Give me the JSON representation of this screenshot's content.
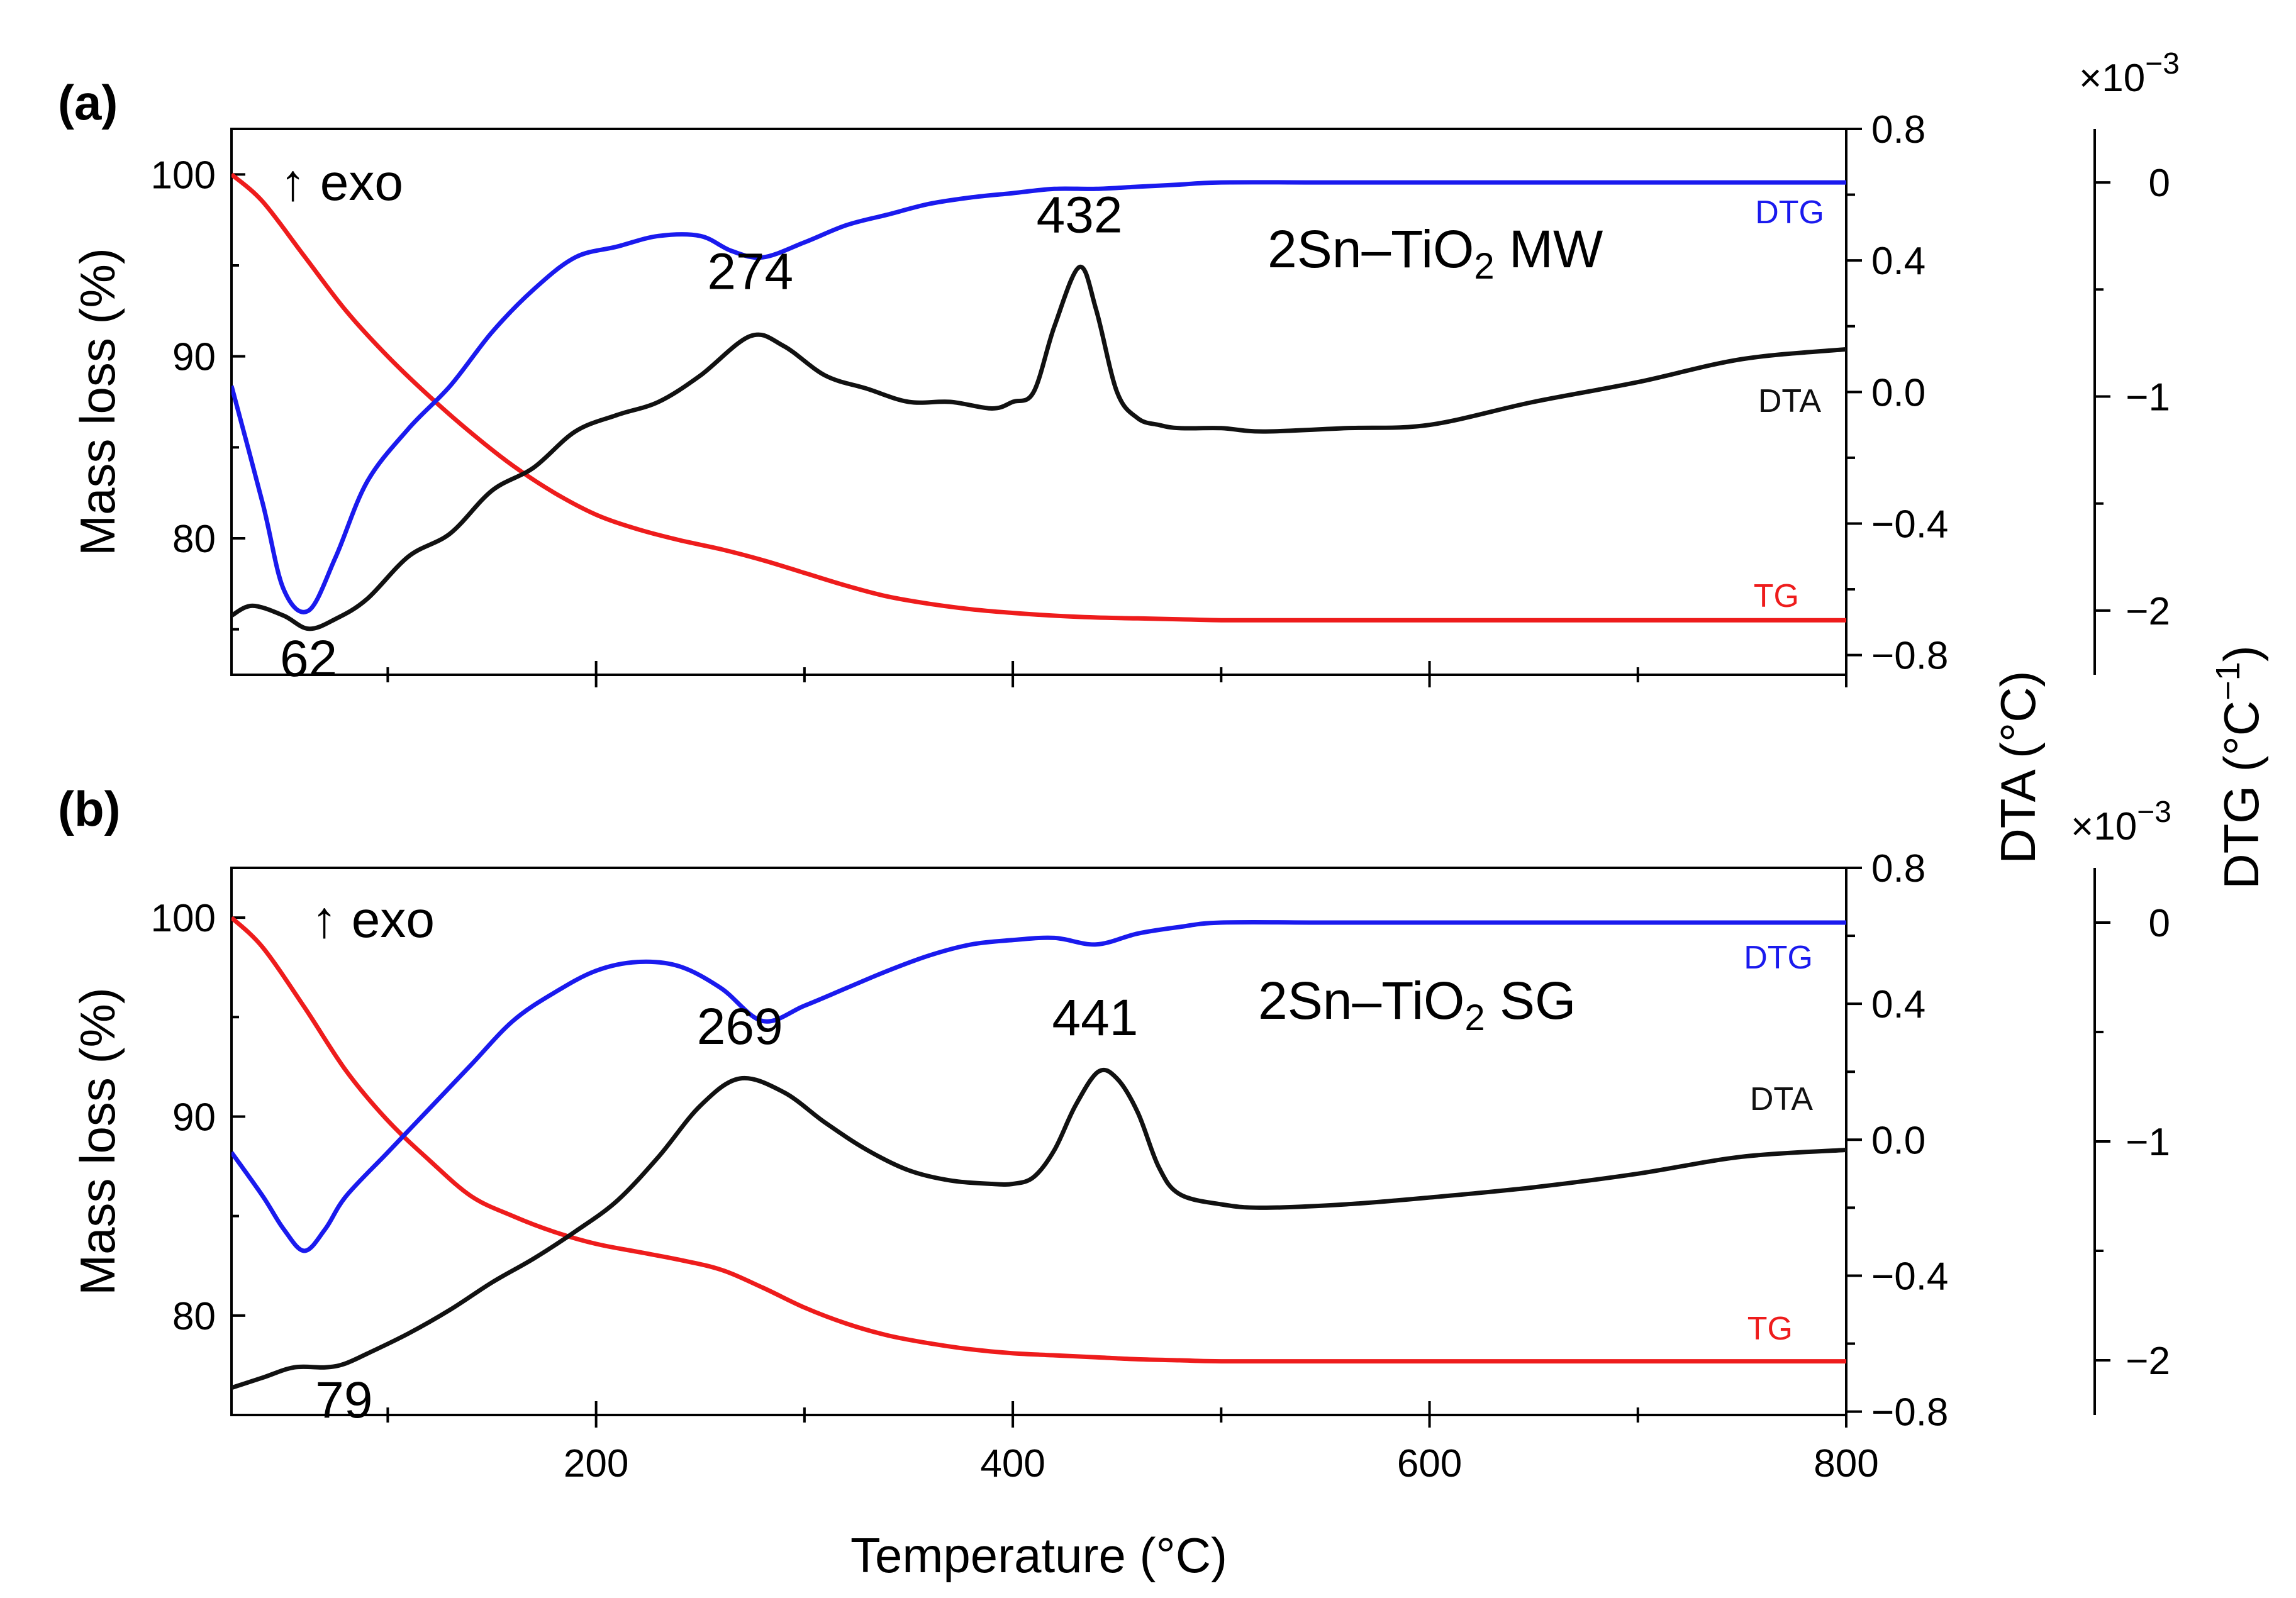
{
  "chart_data": [
    {
      "panel": "(a)",
      "type": "line",
      "sample_label": {
        "prefix": "2Sn–TiO",
        "sub": "2",
        "suffix": " MW"
      },
      "exo_label": "↑ exo",
      "x": {
        "label": "Temperature (°C)",
        "range": [
          25,
          800
        ]
      },
      "y_left": {
        "label": "Mass loss (%)",
        "range": [
          72.5,
          102.5
        ],
        "ticks": [
          "80",
          "90",
          "100"
        ]
      },
      "y_right1": {
        "label": "DTA (°C)",
        "range": [
          -0.86,
          0.8
        ],
        "ticks": [
          "−0.8",
          "−0.4",
          "0.0",
          "0.4",
          "0.8"
        ]
      },
      "y_right2": {
        "label": "DTG (°C−1)",
        "multiplier": "×10−3",
        "range": [
          -2.3,
          0.25
        ],
        "ticks": [
          "−2",
          "−1",
          "0"
        ]
      },
      "series": [
        {
          "name": "TG",
          "color": "#ee1c1c",
          "axis": "left",
          "x": [
            25,
            40,
            60,
            80,
            100,
            120,
            140,
            160,
            180,
            200,
            220,
            240,
            260,
            280,
            300,
            320,
            340,
            360,
            380,
            400,
            420,
            440,
            460,
            480,
            500,
            520,
            560,
            600,
            700,
            800
          ],
          "y": [
            100,
            98.5,
            95.5,
            92.5,
            90.0,
            87.8,
            85.8,
            84.0,
            82.5,
            81.3,
            80.5,
            79.9,
            79.4,
            78.8,
            78.1,
            77.4,
            76.8,
            76.4,
            76.1,
            75.9,
            75.75,
            75.65,
            75.6,
            75.55,
            75.5,
            75.5,
            75.5,
            75.5,
            75.5,
            75.5
          ]
        },
        {
          "name": "DTA",
          "color": "#111111",
          "axis": "right1",
          "x": [
            25,
            35,
            50,
            62,
            75,
            90,
            110,
            130,
            150,
            170,
            190,
            210,
            230,
            250,
            274,
            290,
            310,
            330,
            350,
            370,
            390,
            400,
            410,
            420,
            432,
            440,
            450,
            460,
            470,
            480,
            500,
            520,
            560,
            600,
            650,
            700,
            750,
            800
          ],
          "y": [
            -0.68,
            -0.65,
            -0.68,
            -0.72,
            -0.69,
            -0.63,
            -0.5,
            -0.43,
            -0.3,
            -0.23,
            -0.12,
            -0.07,
            -0.03,
            0.05,
            0.17,
            0.14,
            0.05,
            0.01,
            -0.03,
            -0.03,
            -0.05,
            -0.03,
            0.0,
            0.2,
            0.38,
            0.25,
            0.0,
            -0.08,
            -0.1,
            -0.11,
            -0.11,
            -0.12,
            -0.11,
            -0.1,
            -0.03,
            0.03,
            0.1,
            0.13
          ]
        },
        {
          "name": "DTG",
          "color": "#1a1aee",
          "axis": "right2",
          "x": [
            25,
            40,
            50,
            62,
            75,
            90,
            110,
            130,
            150,
            170,
            190,
            210,
            230,
            250,
            265,
            280,
            300,
            320,
            340,
            360,
            380,
            400,
            420,
            440,
            460,
            480,
            500,
            550,
            600,
            700,
            800
          ],
          "y": [
            -0.95,
            -1.5,
            -1.9,
            -2.0,
            -1.75,
            -1.4,
            -1.15,
            -0.95,
            -0.7,
            -0.5,
            -0.35,
            -0.3,
            -0.25,
            -0.25,
            -0.32,
            -0.35,
            -0.28,
            -0.2,
            -0.15,
            -0.1,
            -0.07,
            -0.05,
            -0.03,
            -0.03,
            -0.02,
            -0.01,
            0.0,
            0.0,
            0.0,
            0.0,
            0.0
          ]
        }
      ],
      "peak_labels": [
        {
          "text": "62",
          "x": 62,
          "series": "DTA"
        },
        {
          "text": "274",
          "x": 274,
          "series": "DTA"
        },
        {
          "text": "432",
          "x": 432,
          "series": "DTA"
        }
      ],
      "x_tick_labels_shown": false
    },
    {
      "panel": "(b)",
      "type": "line",
      "sample_label": {
        "prefix": "2Sn–TiO",
        "sub": "2",
        "suffix": " SG"
      },
      "exo_label": "↑ exo",
      "x": {
        "label": "Temperature (°C)",
        "range": [
          25,
          800
        ],
        "ticks": [
          "200",
          "400",
          "600",
          "800"
        ]
      },
      "y_left": {
        "label": "Mass loss (%)",
        "range": [
          75,
          102.5
        ],
        "ticks": [
          "80",
          "90",
          "100"
        ]
      },
      "y_right1": {
        "label": "DTA (°C)",
        "range": [
          -0.81,
          0.8
        ],
        "ticks": [
          "−0.8",
          "−0.4",
          "0.0",
          "0.4",
          "0.8"
        ]
      },
      "y_right2": {
        "label": "DTG (°C−1)",
        "multiplier": "×10−3",
        "range": [
          -2.25,
          0.25
        ],
        "ticks": [
          "−2",
          "−1",
          "0"
        ]
      },
      "series": [
        {
          "name": "TG",
          "color": "#ee1c1c",
          "axis": "left",
          "x": [
            25,
            40,
            60,
            80,
            100,
            120,
            140,
            160,
            180,
            200,
            220,
            240,
            260,
            280,
            300,
            320,
            340,
            360,
            380,
            400,
            420,
            440,
            460,
            480,
            500,
            550,
            600,
            700,
            800
          ],
          "y": [
            100,
            98.5,
            95.5,
            92.3,
            89.8,
            87.8,
            86.0,
            85.0,
            84.2,
            83.6,
            83.2,
            82.8,
            82.3,
            81.4,
            80.4,
            79.6,
            79.0,
            78.6,
            78.3,
            78.1,
            78.0,
            77.9,
            77.8,
            77.75,
            77.7,
            77.7,
            77.7,
            77.7,
            77.7
          ]
        },
        {
          "name": "DTA",
          "color": "#111111",
          "axis": "right1",
          "x": [
            25,
            40,
            55,
            70,
            79,
            90,
            110,
            130,
            150,
            170,
            190,
            210,
            230,
            250,
            269,
            290,
            310,
            330,
            350,
            370,
            390,
            400,
            410,
            420,
            430,
            441,
            450,
            460,
            470,
            480,
            500,
            520,
            560,
            600,
            650,
            700,
            750,
            800
          ],
          "y": [
            -0.73,
            -0.7,
            -0.67,
            -0.67,
            -0.66,
            -0.63,
            -0.57,
            -0.5,
            -0.42,
            -0.35,
            -0.27,
            -0.18,
            -0.05,
            0.1,
            0.18,
            0.14,
            0.05,
            -0.03,
            -0.09,
            -0.12,
            -0.13,
            -0.13,
            -0.11,
            -0.03,
            0.1,
            0.2,
            0.18,
            0.08,
            -0.08,
            -0.16,
            -0.19,
            -0.2,
            -0.19,
            -0.17,
            -0.14,
            -0.1,
            -0.05,
            -0.03
          ]
        },
        {
          "name": "DTG",
          "color": "#1a1aee",
          "axis": "right2",
          "x": [
            25,
            40,
            50,
            60,
            70,
            80,
            100,
            120,
            140,
            160,
            180,
            200,
            220,
            240,
            260,
            280,
            300,
            320,
            340,
            360,
            380,
            400,
            420,
            440,
            460,
            480,
            500,
            550,
            600,
            700,
            800
          ],
          "y": [
            -1.05,
            -1.25,
            -1.4,
            -1.5,
            -1.4,
            -1.25,
            -1.05,
            -0.85,
            -0.65,
            -0.45,
            -0.32,
            -0.22,
            -0.18,
            -0.2,
            -0.3,
            -0.45,
            -0.38,
            -0.3,
            -0.22,
            -0.15,
            -0.1,
            -0.08,
            -0.07,
            -0.1,
            -0.05,
            -0.02,
            0.0,
            0.0,
            0.0,
            0.0,
            0.0
          ]
        }
      ],
      "peak_labels": [
        {
          "text": "79",
          "x": 79,
          "series": "DTA"
        },
        {
          "text": "269",
          "x": 269,
          "series": "DTA"
        },
        {
          "text": "441",
          "x": 441,
          "series": "DTA"
        }
      ],
      "x_tick_labels_shown": true
    }
  ],
  "shared": {
    "x_axis_label": "Temperature (°C)",
    "dta_axis_label": "DTA (°C)",
    "dtg_axis_label": "DTG (°C−1)"
  }
}
